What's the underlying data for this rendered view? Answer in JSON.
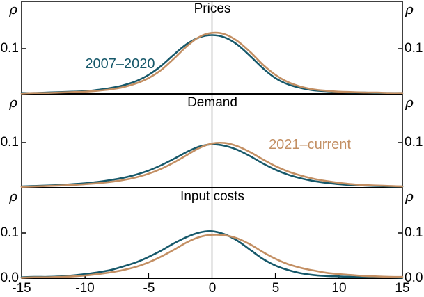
{
  "labels": {
    "rho": "ρ",
    "ytick_01": "0.1",
    "ytick_00": "0.0",
    "xticks": [
      "-15",
      "-10",
      "-5",
      "0",
      "5",
      "10",
      "15"
    ]
  },
  "colors": {
    "series_2007_2020": "#16586a",
    "series_2021_current": "#c38f63",
    "axis": "#000000"
  },
  "chart_data": {
    "type": "line",
    "description": "Three stacked kernel-density panels comparing two periods",
    "xlim": [
      -15,
      15
    ],
    "ylim": [
      0,
      0.2
    ],
    "xticks": [
      -15,
      -10,
      -5,
      0,
      5,
      10,
      15
    ],
    "yticks": [
      0,
      0.1
    ],
    "ylabel": "ρ",
    "xlabel": "",
    "grid": false,
    "legend_position": "inline-text-labels",
    "x": [
      -15,
      -14,
      -13,
      -12,
      -11,
      -10,
      -9,
      -8,
      -7,
      -6,
      -5,
      -4,
      -3,
      -2,
      -1,
      0,
      1,
      2,
      3,
      4,
      5,
      6,
      7,
      8,
      9,
      10,
      11,
      12,
      13,
      14,
      15
    ],
    "panels": [
      {
        "title": "Prices",
        "series": [
          {
            "name": "2007–2020",
            "color": "#16586a",
            "values": [
              0.002,
              0.002,
              0.003,
              0.004,
              0.005,
              0.006,
              0.009,
              0.013,
              0.019,
              0.028,
              0.042,
              0.062,
              0.087,
              0.11,
              0.125,
              0.13,
              0.125,
              0.109,
              0.084,
              0.057,
              0.035,
              0.021,
              0.013,
              0.008,
              0.006,
              0.004,
              0.003,
              0.003,
              0.002,
              0.002,
              0.002
            ]
          },
          {
            "name": "2021–current",
            "color": "#c38f63",
            "values": [
              0.001,
              0.002,
              0.002,
              0.003,
              0.004,
              0.005,
              0.007,
              0.01,
              0.015,
              0.023,
              0.035,
              0.053,
              0.078,
              0.105,
              0.126,
              0.135,
              0.132,
              0.117,
              0.093,
              0.065,
              0.042,
              0.026,
              0.016,
              0.01,
              0.007,
              0.005,
              0.004,
              0.003,
              0.003,
              0.002,
              0.002
            ]
          }
        ]
      },
      {
        "title": "Demand",
        "series": [
          {
            "name": "2007–2020",
            "color": "#16586a",
            "values": [
              0.003,
              0.004,
              0.005,
              0.006,
              0.008,
              0.01,
              0.013,
              0.017,
              0.022,
              0.029,
              0.038,
              0.05,
              0.064,
              0.079,
              0.091,
              0.096,
              0.093,
              0.084,
              0.07,
              0.054,
              0.04,
              0.029,
              0.021,
              0.015,
              0.011,
              0.008,
              0.006,
              0.005,
              0.004,
              0.003,
              0.003
            ]
          },
          {
            "name": "2021–current",
            "color": "#c38f63",
            "values": [
              0.002,
              0.003,
              0.004,
              0.005,
              0.006,
              0.008,
              0.01,
              0.013,
              0.017,
              0.023,
              0.031,
              0.042,
              0.056,
              0.072,
              0.088,
              0.098,
              0.099,
              0.092,
              0.079,
              0.063,
              0.048,
              0.036,
              0.027,
              0.02,
              0.015,
              0.011,
              0.008,
              0.006,
              0.005,
              0.004,
              0.003
            ]
          }
        ]
      },
      {
        "title": "Input costs",
        "series": [
          {
            "name": "2007–2020",
            "color": "#16586a",
            "values": [
              0.002,
              0.003,
              0.003,
              0.004,
              0.006,
              0.009,
              0.013,
              0.018,
              0.026,
              0.035,
              0.047,
              0.061,
              0.077,
              0.091,
              0.101,
              0.104,
              0.097,
              0.083,
              0.063,
              0.043,
              0.028,
              0.018,
              0.011,
              0.007,
              0.005,
              0.004,
              0.003,
              0.002,
              0.002,
              0.002,
              0.001
            ]
          },
          {
            "name": "2021–current",
            "color": "#c38f63",
            "values": [
              0.001,
              0.002,
              0.002,
              0.003,
              0.004,
              0.006,
              0.009,
              0.013,
              0.018,
              0.025,
              0.035,
              0.048,
              0.063,
              0.079,
              0.091,
              0.096,
              0.095,
              0.088,
              0.075,
              0.058,
              0.043,
              0.031,
              0.023,
              0.017,
              0.012,
              0.009,
              0.007,
              0.005,
              0.004,
              0.003,
              0.003
            ]
          }
        ]
      }
    ]
  }
}
